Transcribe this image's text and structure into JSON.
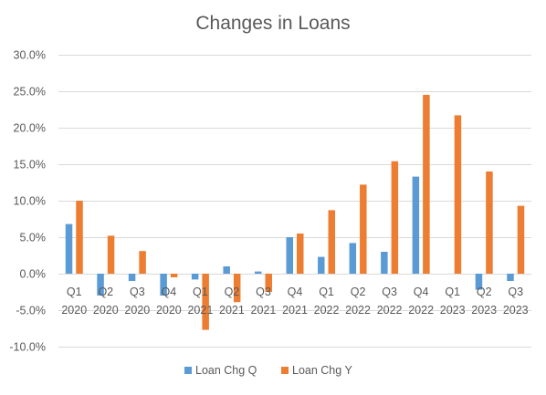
{
  "chart_data": {
    "type": "bar",
    "title": "Changes in Loans",
    "xlabel": "",
    "ylabel": "",
    "ylim": [
      -10,
      30
    ],
    "ytick_step": 5,
    "ytick_labels": [
      "30.0%",
      "25.0%",
      "20.0%",
      "15.0%",
      "10.0%",
      "5.0%",
      "0.0%",
      "-5.0%",
      "-10.0%"
    ],
    "categories": [
      [
        "Q1",
        "2020"
      ],
      [
        "Q2",
        "2020"
      ],
      [
        "Q3",
        "2020"
      ],
      [
        "Q4",
        "2020"
      ],
      [
        "Q1",
        "2021"
      ],
      [
        "Q2",
        "2021"
      ],
      [
        "Q3",
        "2021"
      ],
      [
        "Q4",
        "2021"
      ],
      [
        "Q1",
        "2022"
      ],
      [
        "Q2",
        "2022"
      ],
      [
        "Q3",
        "2022"
      ],
      [
        "Q4",
        "2022"
      ],
      [
        "Q1",
        "2023"
      ],
      [
        "Q2",
        "2023"
      ],
      [
        "Q3",
        "2023"
      ]
    ],
    "series": [
      {
        "name": "Loan Chg Q",
        "color": "#5B9BD5",
        "values": [
          6.8,
          -3.0,
          -1.0,
          -3.0,
          -0.8,
          1.0,
          0.3,
          5.0,
          2.3,
          4.2,
          3.0,
          13.3,
          0.0,
          -2.2,
          -1.0
        ]
      },
      {
        "name": "Loan Chg Y",
        "color": "#ED7D31",
        "values": [
          10.0,
          5.2,
          3.1,
          -0.5,
          -7.7,
          -3.9,
          -2.5,
          5.5,
          8.7,
          12.2,
          15.4,
          24.5,
          21.7,
          14.0,
          9.3
        ]
      }
    ],
    "grid": true,
    "legend": "bottom"
  }
}
